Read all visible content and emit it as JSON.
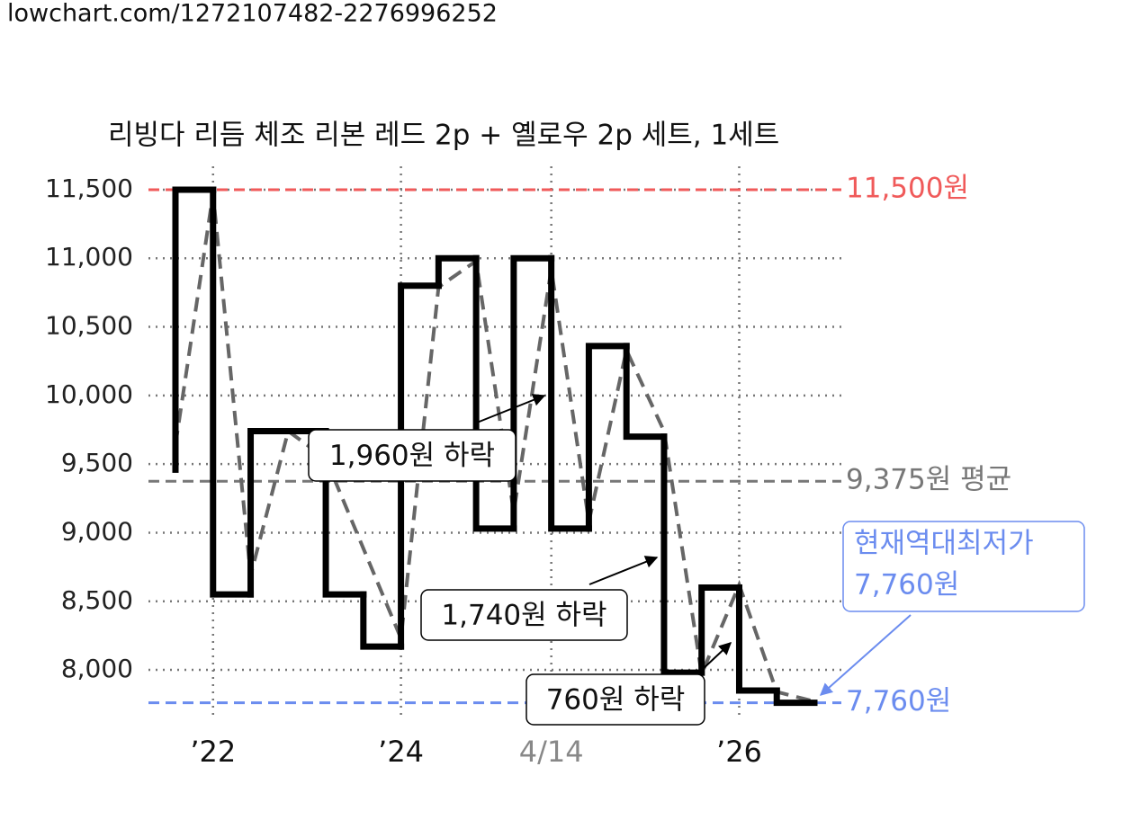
{
  "header": {
    "url": "lowchart.com/1272107482-2276996252"
  },
  "chart_data": {
    "type": "step",
    "title": "리빙다 리듬 체조 리본 레드 2p + 옐로우 2p 세트, 1세트",
    "xlim": [
      0,
      17
    ],
    "ylim": [
      7640,
      11670
    ],
    "yticks": [
      {
        "value": 8000,
        "label": "8,000"
      },
      {
        "value": 8500,
        "label": "8,500"
      },
      {
        "value": 9000,
        "label": "9,000"
      },
      {
        "value": 9500,
        "label": "9,500"
      },
      {
        "value": 10000,
        "label": "10,000"
      },
      {
        "value": 10500,
        "label": "10,500"
      },
      {
        "value": 11000,
        "label": "11,000"
      },
      {
        "value": 11500,
        "label": "11,500"
      }
    ],
    "xticks": [
      {
        "value": 1,
        "label": "’22"
      },
      {
        "value": 6,
        "label": "’24"
      },
      {
        "value": 10,
        "label": "4/14",
        "color": "#888888"
      },
      {
        "value": 15,
        "label": "’26"
      }
    ],
    "grid": true,
    "series": [
      {
        "color": "#000000",
        "step": true,
        "x": [
          0,
          0,
          1,
          2,
          4,
          5,
          6,
          7,
          8,
          9,
          10,
          11,
          12,
          13,
          14,
          15,
          16
        ],
        "values": [
          9460,
          11500,
          8550,
          9740,
          8550,
          8170,
          10800,
          11000,
          9030,
          11000,
          9030,
          10360,
          9700,
          7980,
          8600,
          7850,
          7760
        ]
      },
      {
        "color": "#666666",
        "dashed": true,
        "x": [
          0,
          1,
          2,
          3,
          4,
          6,
          7,
          8,
          9,
          10,
          11,
          12,
          13,
          14,
          15,
          16,
          17
        ],
        "values": [
          9640,
          11470,
          8690,
          9740,
          9540,
          8230,
          10790,
          10980,
          9150,
          10920,
          9080,
          10330,
          9740,
          7970,
          8620,
          7840,
          7770
        ]
      }
    ],
    "reference_lines": [
      {
        "value": 11500,
        "label": "11,500원",
        "color": "#f05a5a"
      },
      {
        "value": 9375,
        "label": "9,375원 평균",
        "color": "#777777"
      },
      {
        "value": 7760,
        "label": "7,760원",
        "color": "#6b8cef"
      }
    ],
    "annotations": [
      {
        "text": "1,960원 하락"
      },
      {
        "text": "1,740원 하락"
      },
      {
        "text": "760원 하락"
      },
      {
        "lines": [
          "현재역대최저가",
          "7,760원"
        ],
        "color": "#6b8cef"
      }
    ]
  }
}
